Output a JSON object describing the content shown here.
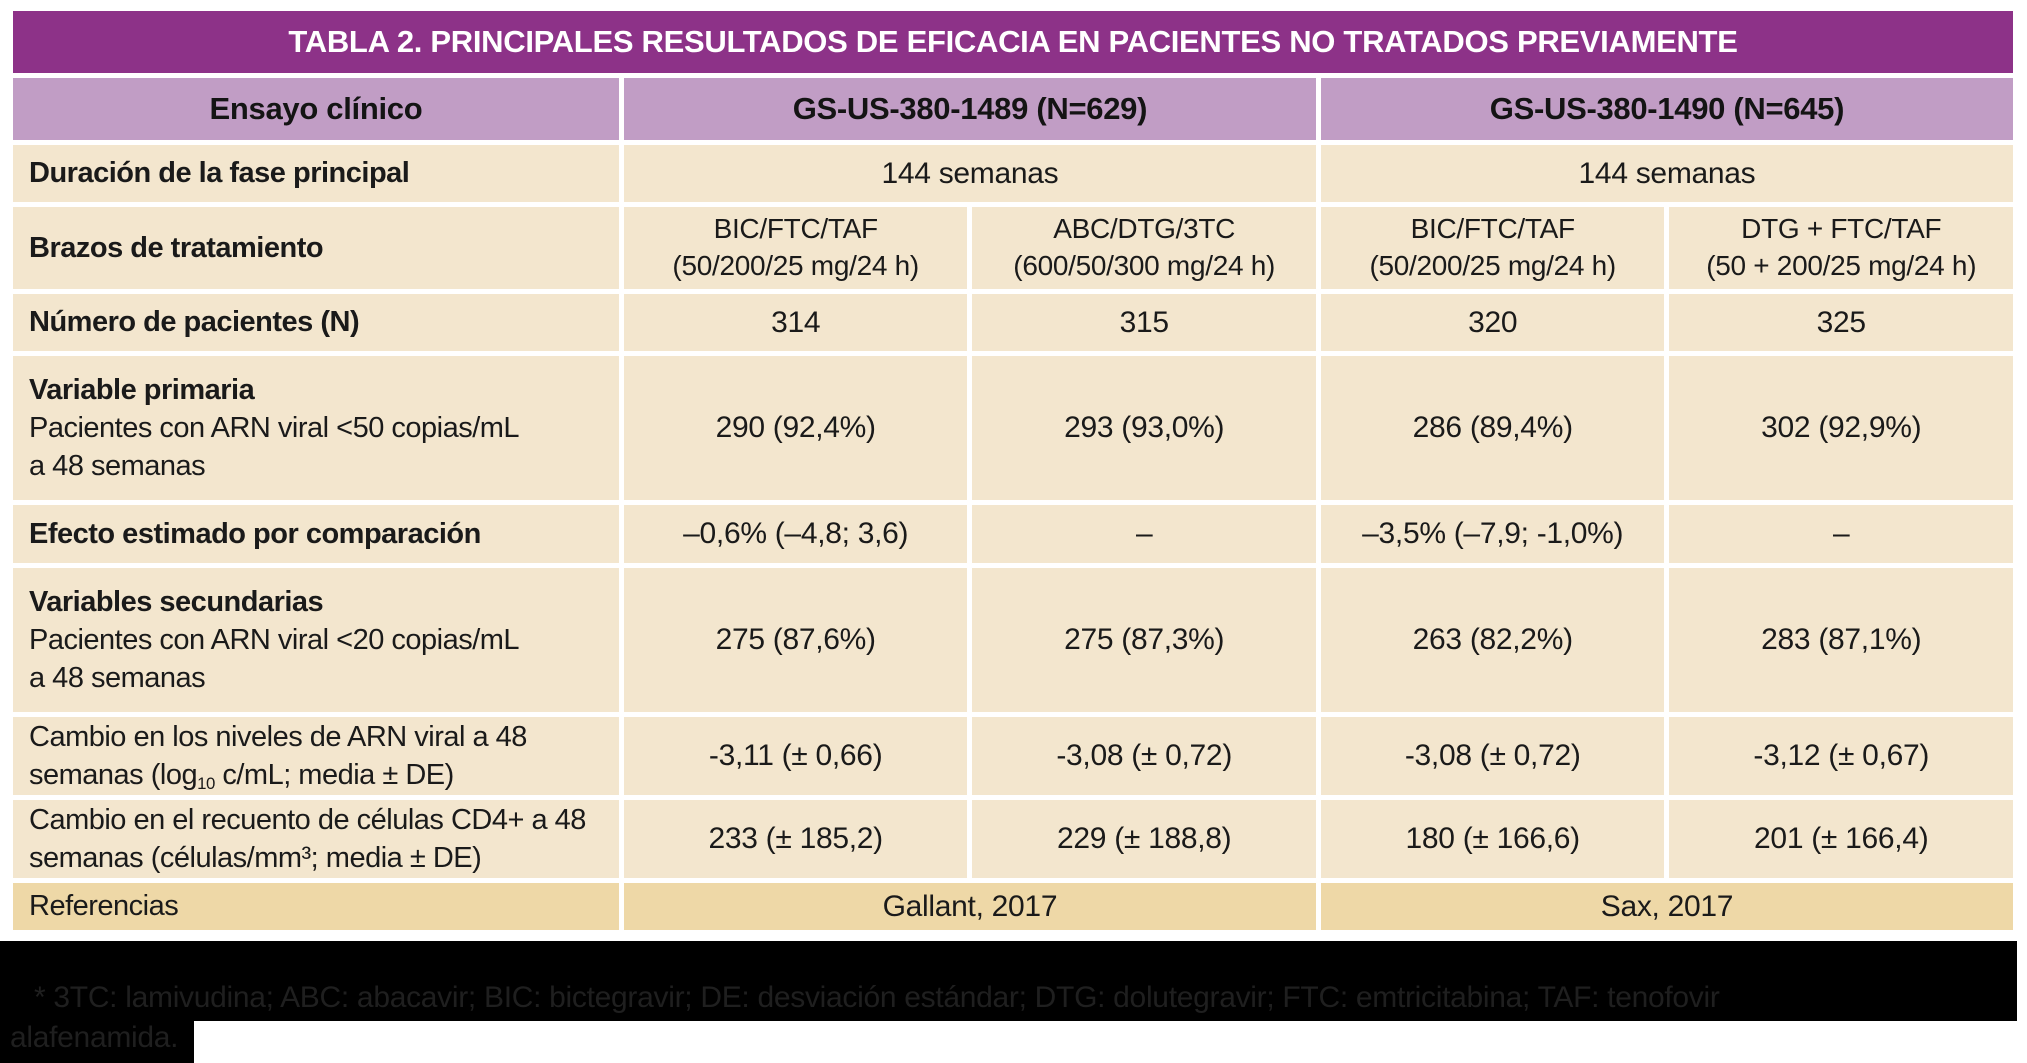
{
  "colors": {
    "title_bg": "#8d3288",
    "header_bg": "#c19dc5",
    "cell_bg": "#f3e6ce",
    "references_bg": "#eed8a7",
    "footnote_bg": "#000000",
    "footnote_text": "#1f1f1f",
    "body_text": "#1a1a1a",
    "title_text": "#ffffff"
  },
  "table": {
    "title": "TABLA 2. PRINCIPALES RESULTADOS DE EFICACIA EN PACIENTES NO TRATADOS PREVIAMENTE",
    "header": {
      "trial": "Ensayo clínico",
      "study1": "GS-US-380-1489 (N=629)",
      "study2": "GS-US-380-1490 (N=645)"
    },
    "rows": {
      "duracion": {
        "label": "Duración de la fase principal",
        "study1": "144 semanas",
        "study2": "144 semanas"
      },
      "brazos": {
        "label": "Brazos de tratamiento",
        "c1": "BIC/FTC/TAF\n(50/200/25 mg/24 h)",
        "c2": "ABC/DTG/3TC\n(600/50/300 mg/24 h)",
        "c3": "BIC/FTC/TAF\n(50/200/25 mg/24 h)",
        "c4": "DTG + FTC/TAF\n(50 + 200/25 mg/24 h)"
      },
      "numero": {
        "label": "Número de pacientes (N)",
        "c1": "314",
        "c2": "315",
        "c3": "320",
        "c4": "325"
      },
      "var_primaria": {
        "label_bold": "Variable primaria",
        "label_rest": "Pacientes con ARN viral <50 copias/mL\na 48 semanas",
        "c1": "290 (92,4%)",
        "c2": "293 (93,0%)",
        "c3": "286 (89,4%)",
        "c4": "302 (92,9%)"
      },
      "efecto": {
        "label": "Efecto estimado por comparación",
        "c1": "–0,6% (–4,8; 3,6)",
        "c2": "–",
        "c3": "–3,5% (–7,9; -1,0%)",
        "c4": "–"
      },
      "var_secundarias": {
        "label_bold": "Variables secundarias",
        "label_rest": "Pacientes con ARN viral <20 copias/mL\na 48 semanas",
        "c1": "275 (87,6%)",
        "c2": "275 (87,3%)",
        "c3": "263 (82,2%)",
        "c4": "283 (87,1%)"
      },
      "cambio_arn": {
        "label_pre": "Cambio en los niveles de ARN viral a 48\nsemanas (log",
        "label_sub": "10",
        "label_post": " c/mL; media ± DE)",
        "c1": "-3,11 (± 0,66)",
        "c2": "-3,08 (± 0,72)",
        "c3": "-3,08 (± 0,72)",
        "c4": "-3,12 (± 0,67)"
      },
      "cambio_cd4": {
        "label": "Cambio en el recuento de células CD4+ a 48\nsemanas (células/mm³; media ± DE)",
        "c1": "233 (± 185,2)",
        "c2": "229 (± 188,8)",
        "c3": "180 (± 166,6)",
        "c4": "201 (± 166,4)"
      },
      "referencias": {
        "label": "Referencias",
        "study1": "Gallant, 2017",
        "study2": "Sax, 2017"
      }
    }
  },
  "footnote": {
    "line1": "* 3TC: lamivudina; ABC: abacavir; BIC: bictegravir; DE: desviación estándar; DTG: dolutegravir; FTC: emtricitabina; TAF: tenofovir",
    "line2": "alafenamida."
  }
}
